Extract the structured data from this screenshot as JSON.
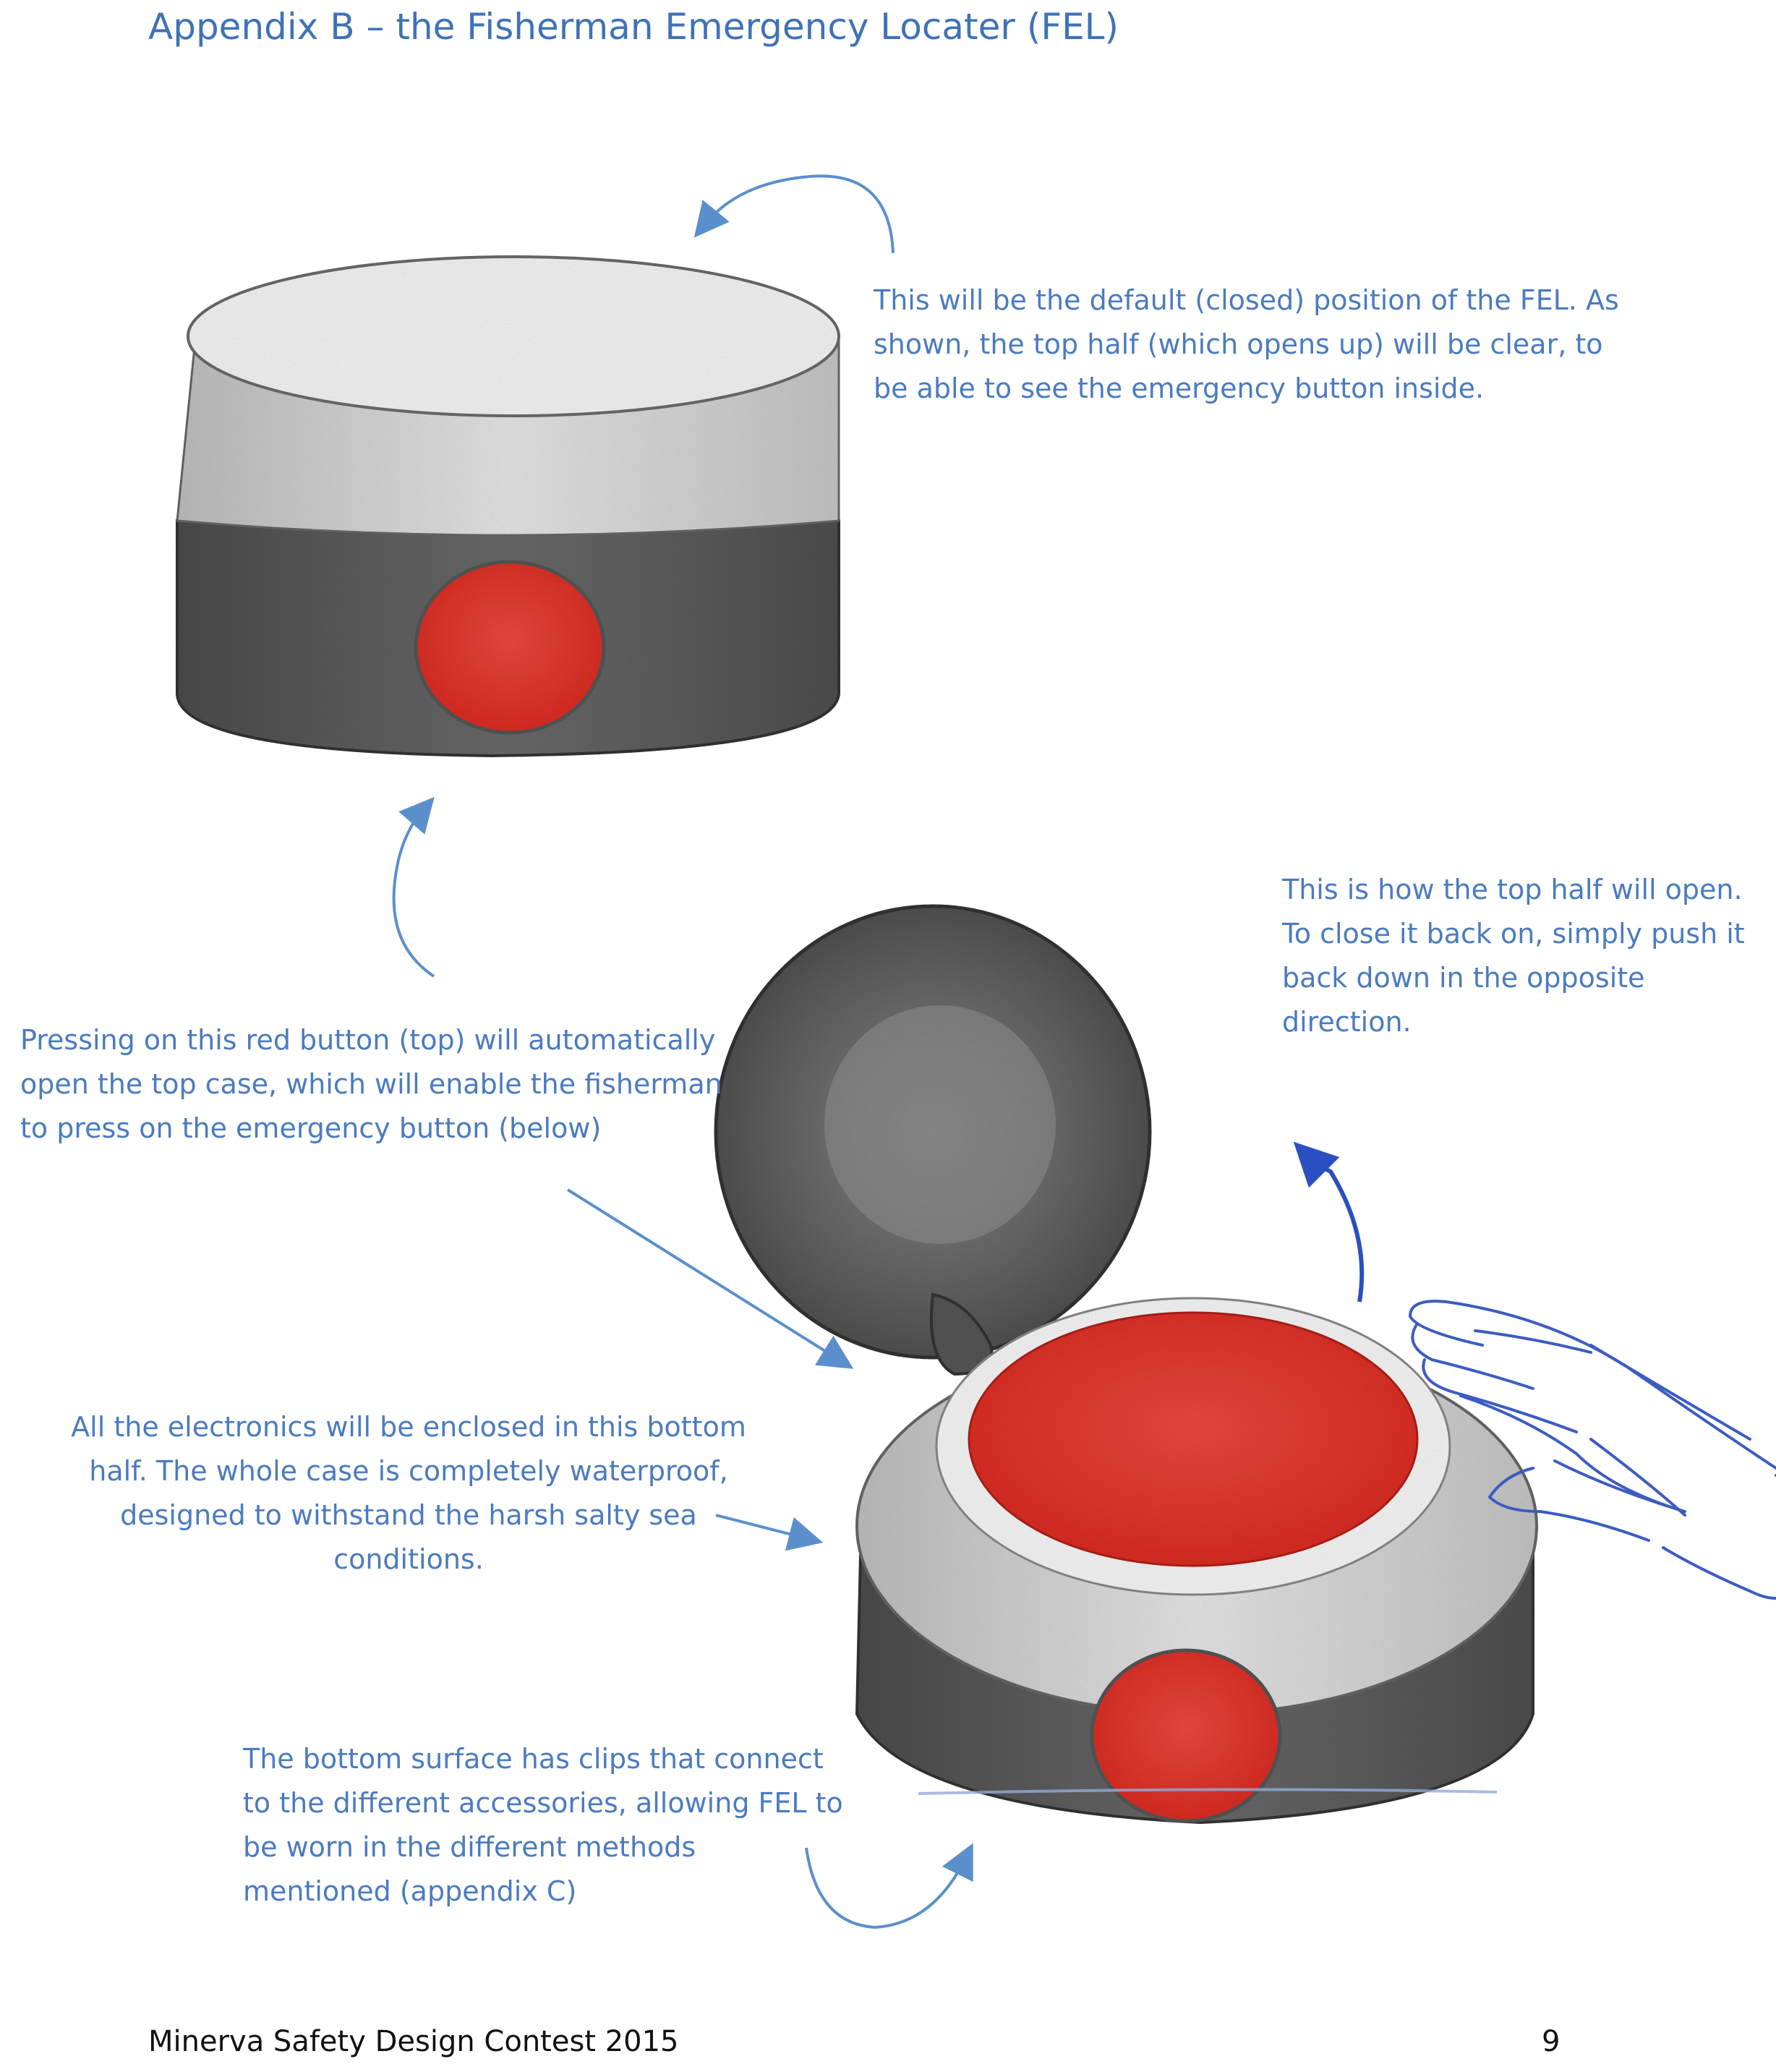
{
  "title": "Appendix B – the Fisherman Emergency Locater (FEL)",
  "notes": {
    "closed_position": [
      "This will be the default (closed) position of the FEL. As",
      "shown, the top half (which opens up) will be clear, to",
      "be able to see the emergency button inside."
    ],
    "open_top": [
      "This is how the top half will open.",
      "To close it back on, simply push it",
      "back down in the opposite",
      "direction."
    ],
    "red_button": [
      "Pressing on this red button (top) will automatically",
      "open the top case, which will enable the fisherman",
      "to press on the emergency button (below)"
    ],
    "electronics": [
      "All the electronics will be enclosed in this bottom",
      "half. The whole case is completely waterproof,",
      "designed to withstand the harsh salty sea",
      "conditions."
    ],
    "bottom_surface": [
      "The bottom surface has clips that connect",
      "to the different accessories, allowing FEL to",
      "be worn in the different methods",
      "mentioned (appendix C)"
    ]
  },
  "footer": {
    "left": "Minerva Safety Design Contest 2015",
    "page_number": "9"
  },
  "colors": {
    "annotation_text": "#4a7bc0",
    "arrow": "#5b8fcc",
    "dark_arrow": "#2a4fc0",
    "hand_outline": "#3c5cc0",
    "button_red": "#e0322a",
    "case_dark": "#5a5a5a",
    "case_light": "#dedede"
  },
  "illustrations": {
    "closed_device": "closed-fel-drawing",
    "open_device": "open-fel-drawing",
    "hand": "hand-sketch"
  }
}
